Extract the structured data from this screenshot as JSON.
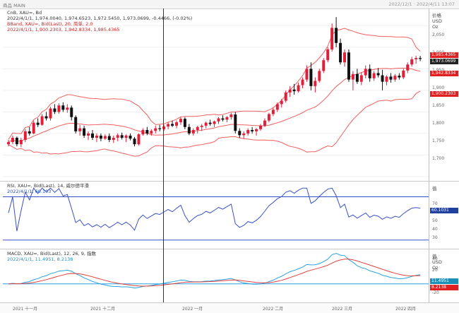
{
  "topbar": {
    "title": "商品 MAIN",
    "right": "2022/12/1 · 2022/4/11 13:07"
  },
  "main": {
    "legend": [
      "CnB, XAU=, Bd",
      "2022/4/1/1, 1,974.0040, 1,974.6523, 1,972.5450, 1,973.0699, -0.4466, (-0.02%)",
      "BBand, XAU=, Bid(Last), 20, 简单, 2.0",
      "2022/4/1/1, 1,900.2303, 1,942.8334, 1,985.4365"
    ],
    "axis_title": "价格\nUSD\nOz",
    "ticks": [
      "2,050",
      "2,000",
      "1,950",
      "1,900",
      "1,850",
      "1,800",
      "1,750",
      "1,700"
    ],
    "tags": {
      "upper": "1,985.4365",
      "last": "1,973.0699",
      "mid": "1,942.8334",
      "lower": "1,900.2303"
    },
    "candles": [
      [
        1775,
        1785,
        1770,
        1780
      ],
      [
        1780,
        1795,
        1775,
        1790
      ],
      [
        1790,
        1793,
        1770,
        1775
      ],
      [
        1775,
        1790,
        1768,
        1785
      ],
      [
        1785,
        1810,
        1780,
        1805
      ],
      [
        1805,
        1815,
        1795,
        1800
      ],
      [
        1800,
        1830,
        1798,
        1825
      ],
      [
        1825,
        1835,
        1815,
        1820
      ],
      [
        1820,
        1845,
        1818,
        1840
      ],
      [
        1840,
        1850,
        1830,
        1835
      ],
      [
        1835,
        1862,
        1830,
        1858
      ],
      [
        1858,
        1868,
        1845,
        1850
      ],
      [
        1850,
        1870,
        1846,
        1865
      ],
      [
        1865,
        1872,
        1850,
        1855
      ],
      [
        1855,
        1868,
        1848,
        1860
      ],
      [
        1860,
        1865,
        1830,
        1838
      ],
      [
        1838,
        1842,
        1800,
        1805
      ],
      [
        1805,
        1820,
        1795,
        1812
      ],
      [
        1812,
        1818,
        1790,
        1795
      ],
      [
        1795,
        1805,
        1785,
        1800
      ],
      [
        1800,
        1808,
        1785,
        1790
      ],
      [
        1790,
        1800,
        1780,
        1795
      ],
      [
        1795,
        1800,
        1782,
        1788
      ],
      [
        1788,
        1798,
        1785,
        1794
      ],
      [
        1794,
        1800,
        1780,
        1785
      ],
      [
        1785,
        1795,
        1778,
        1790
      ],
      [
        1790,
        1800,
        1782,
        1796
      ],
      [
        1796,
        1802,
        1786,
        1790
      ],
      [
        1790,
        1798,
        1780,
        1795
      ],
      [
        1795,
        1800,
        1784,
        1788
      ],
      [
        1788,
        1792,
        1770,
        1775
      ],
      [
        1775,
        1800,
        1772,
        1798
      ],
      [
        1798,
        1812,
        1795,
        1808
      ],
      [
        1808,
        1815,
        1796,
        1800
      ],
      [
        1800,
        1810,
        1795,
        1806
      ],
      [
        1806,
        1818,
        1800,
        1812
      ],
      [
        1812,
        1820,
        1805,
        1810
      ],
      [
        1810,
        1820,
        1806,
        1816
      ],
      [
        1816,
        1826,
        1810,
        1822
      ],
      [
        1822,
        1830,
        1815,
        1818
      ],
      [
        1818,
        1830,
        1812,
        1826
      ],
      [
        1826,
        1838,
        1820,
        1834
      ],
      [
        1834,
        1838,
        1810,
        1815
      ],
      [
        1815,
        1822,
        1796,
        1800
      ],
      [
        1800,
        1812,
        1795,
        1808
      ],
      [
        1808,
        1818,
        1800,
        1815
      ],
      [
        1815,
        1822,
        1806,
        1818
      ],
      [
        1818,
        1828,
        1812,
        1825
      ],
      [
        1825,
        1832,
        1818,
        1822
      ],
      [
        1822,
        1830,
        1815,
        1828
      ],
      [
        1828,
        1838,
        1822,
        1835
      ],
      [
        1835,
        1842,
        1828,
        1832
      ],
      [
        1832,
        1840,
        1826,
        1838
      ],
      [
        1838,
        1848,
        1832,
        1844
      ],
      [
        1844,
        1850,
        1800,
        1806
      ],
      [
        1806,
        1812,
        1790,
        1796
      ],
      [
        1796,
        1805,
        1788,
        1800
      ],
      [
        1800,
        1812,
        1795,
        1808
      ],
      [
        1808,
        1815,
        1800,
        1805
      ],
      [
        1805,
        1812,
        1795,
        1810
      ],
      [
        1810,
        1822,
        1806,
        1818
      ],
      [
        1818,
        1835,
        1815,
        1830
      ],
      [
        1830,
        1848,
        1826,
        1845
      ],
      [
        1845,
        1860,
        1840,
        1855
      ],
      [
        1855,
        1872,
        1850,
        1868
      ],
      [
        1868,
        1880,
        1860,
        1876
      ],
      [
        1876,
        1900,
        1872,
        1895
      ],
      [
        1895,
        1910,
        1885,
        1902
      ],
      [
        1902,
        1915,
        1890,
        1898
      ],
      [
        1898,
        1918,
        1895,
        1912
      ],
      [
        1912,
        1930,
        1905,
        1925
      ],
      [
        1925,
        1958,
        1920,
        1950
      ],
      [
        1950,
        1965,
        1900,
        1910
      ],
      [
        1910,
        1930,
        1895,
        1922
      ],
      [
        1922,
        1950,
        1918,
        1945
      ],
      [
        1945,
        1975,
        1940,
        1970
      ],
      [
        1970,
        2000,
        1965,
        1995
      ],
      [
        1995,
        2055,
        1990,
        2045
      ],
      [
        2045,
        2070,
        2000,
        2010
      ],
      [
        2010,
        2020,
        1960,
        1965
      ],
      [
        1965,
        1995,
        1955,
        1988
      ],
      [
        1988,
        1995,
        1920,
        1925
      ],
      [
        1925,
        1945,
        1900,
        1938
      ],
      [
        1938,
        1950,
        1915,
        1920
      ],
      [
        1920,
        1942,
        1912,
        1935
      ],
      [
        1935,
        1958,
        1928,
        1950
      ],
      [
        1950,
        1960,
        1920,
        1928
      ],
      [
        1928,
        1945,
        1922,
        1940
      ],
      [
        1940,
        1952,
        1930,
        1935
      ],
      [
        1935,
        1948,
        1900,
        1920
      ],
      [
        1920,
        1935,
        1912,
        1932
      ],
      [
        1932,
        1940,
        1918,
        1925
      ],
      [
        1925,
        1938,
        1920,
        1934
      ],
      [
        1934,
        1940,
        1925,
        1930
      ],
      [
        1930,
        1950,
        1926,
        1946
      ],
      [
        1946,
        1965,
        1940,
        1960
      ],
      [
        1960,
        1978,
        1955,
        1972
      ],
      [
        1972,
        1980,
        1962,
        1975
      ],
      [
        1975,
        1980,
        1968,
        1973
      ]
    ]
  },
  "rsi": {
    "legend": [
      "RSI, XAU=, Bid(Last), 14, 威尔德平滑",
      "2022/4/1/1, 60.103"
    ],
    "axis_title": "值",
    "ticks": [
      "70",
      "60",
      "50",
      "40",
      "30"
    ],
    "tag": "60.1031"
  },
  "macd": {
    "legend": [
      "MACD, XAU=, Bid(Last), 12, 26, 9, 指数",
      "2022/4/1/1, 11.4951, 8.2138"
    ],
    "axis_title": "值\nUSD\nOz",
    "ticks": [
      "40",
      "20",
      "0",
      "-20"
    ],
    "tags": {
      "macd": "11.4951",
      "signal": "8.2138"
    }
  },
  "dates": [
    "2021 十一月",
    "2021 十二月",
    "2022 一月",
    "2022 二月",
    "2022 三月",
    "2022 四月"
  ],
  "colors": {
    "up": "#e0203a",
    "down": "#111111",
    "band": "#f06060",
    "rsi": "#3a50c8",
    "macd": "#2aa0e0",
    "signal": "#e04040"
  }
}
